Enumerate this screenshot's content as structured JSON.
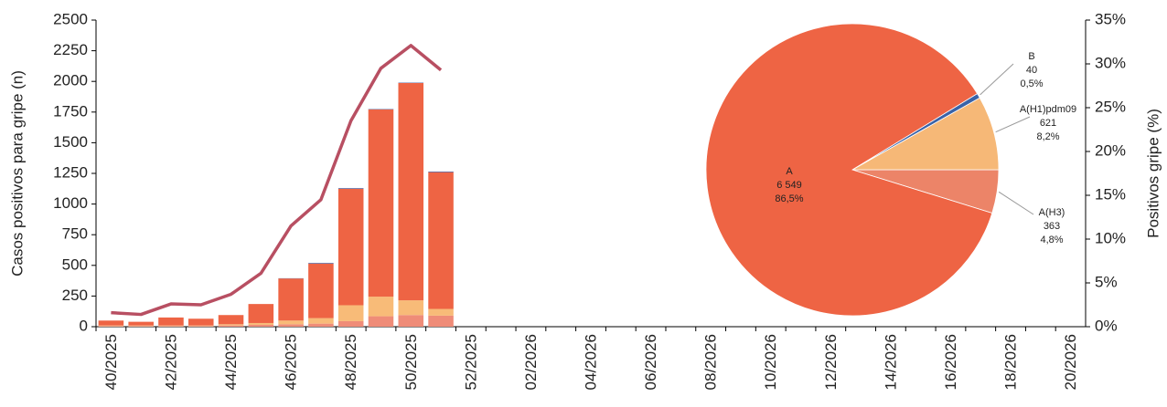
{
  "chart_data": [
    {
      "type": "bar",
      "y_label": "Casos positivos para gripe (n)",
      "y2_label": "Positivos gripe (%)",
      "categories": [
        "40/2025",
        null,
        "42/2025",
        null,
        "44/2025",
        null,
        "46/2025",
        null,
        "48/2025",
        null,
        "50/2025",
        null,
        "52/2025",
        null,
        "02/2026",
        null,
        "04/2026",
        null,
        "06/2026",
        null,
        "08/2026",
        null,
        "10/2026",
        null,
        "12/2026",
        null,
        "14/2026",
        null,
        "16/2026",
        null,
        "18/2026",
        null,
        "20/2026"
      ],
      "series": [
        {
          "color": "#ef8c78",
          "values": [
            5,
            5,
            5,
            5,
            10,
            15,
            20,
            25,
            45,
            85,
            95,
            90,
            null,
            null,
            null,
            null,
            null,
            null,
            null,
            null,
            null,
            null,
            null,
            null,
            null,
            null,
            null,
            null,
            null,
            null,
            null,
            null,
            null
          ]
        },
        {
          "color": "#f8bb78",
          "values": [
            5,
            5,
            5,
            5,
            10,
            15,
            30,
            45,
            130,
            160,
            120,
            55,
            null,
            null,
            null,
            null,
            null,
            null,
            null,
            null,
            null,
            null,
            null,
            null,
            null,
            null,
            null,
            null,
            null,
            null,
            null,
            null,
            null
          ]
        },
        {
          "color": "#ee6444",
          "values": [
            40,
            30,
            65,
            55,
            75,
            155,
            343,
            445,
            950,
            1527,
            1772,
            1115,
            null,
            null,
            null,
            null,
            null,
            null,
            null,
            null,
            null,
            null,
            null,
            null,
            null,
            null,
            null,
            null,
            null,
            null,
            null,
            null,
            null
          ]
        },
        {
          "color": "#3b5ea6",
          "values": [
            0,
            0,
            0,
            0,
            0,
            0,
            2,
            5,
            5,
            3,
            3,
            5,
            null,
            null,
            null,
            null,
            null,
            null,
            null,
            null,
            null,
            null,
            null,
            null,
            null,
            null,
            null,
            null,
            null,
            null,
            null,
            null,
            null
          ]
        },
        {
          "type": "line",
          "axis": "y2",
          "color": "#b84f62",
          "values": [
            1.6,
            1.4,
            2.6,
            2.5,
            3.7,
            6.1,
            11.5,
            14.5,
            23.5,
            29.5,
            32.1,
            29.3,
            null,
            null,
            null,
            null,
            null,
            null,
            null,
            null,
            null,
            null,
            null,
            null,
            null,
            null,
            null,
            null,
            null,
            null,
            null,
            null,
            null
          ]
        }
      ],
      "ylim": [
        0,
        2500
      ],
      "yticks": [
        0,
        250,
        500,
        750,
        1000,
        1250,
        1500,
        1750,
        2000,
        2250,
        2500
      ],
      "y2lim": [
        0,
        35
      ],
      "y2ticks": [
        {
          "value": 0,
          "label": "0%"
        },
        {
          "value": 5,
          "label": "5%"
        },
        {
          "value": 10,
          "label": "10%"
        },
        {
          "value": 15,
          "label": "15%"
        },
        {
          "value": 20,
          "label": "20%"
        },
        {
          "value": 25,
          "label": "25%"
        },
        {
          "value": 30,
          "label": "30%"
        },
        {
          "value": 35,
          "label": "35%"
        }
      ]
    },
    {
      "type": "pie",
      "categories": [
        "A(H3)",
        "A(H1)pdm09",
        "B",
        "A"
      ],
      "values": [
        363,
        621,
        40,
        6549
      ],
      "value_labels": [
        "363",
        "621",
        "40",
        "6 549"
      ],
      "shares": [
        4.8,
        8.2,
        0.5,
        86.5
      ],
      "share_labels": [
        "4,8%",
        "8,2%",
        "0,5%",
        "86,5%"
      ],
      "colors": [
        "#ec8468",
        "#f6b877",
        "#3a63a8",
        "#ee6444"
      ]
    }
  ]
}
